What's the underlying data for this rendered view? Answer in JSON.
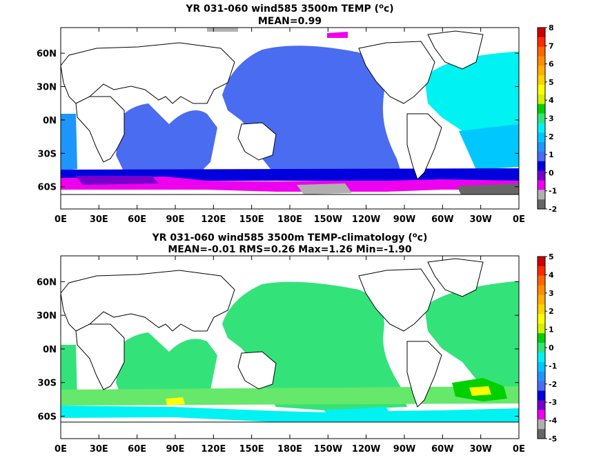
{
  "chart_data": [
    {
      "type": "heatmap",
      "title": "YR 031-060 wind585 3500m TEMP (",
      "title_sup": "o",
      "title_end": "c)",
      "subtitle": "MEAN=0.99",
      "x_ticks": [
        "0E",
        "30E",
        "60E",
        "90E",
        "120E",
        "150E",
        "180E",
        "150W",
        "120W",
        "90W",
        "60W",
        "30W",
        "0E"
      ],
      "y_ticks": [
        "60N",
        "30N",
        "0N",
        "30S",
        "60S"
      ],
      "xlim": [
        0,
        360
      ],
      "ylim": [
        -80,
        83
      ],
      "colorbar_ticks": [
        "8",
        "7",
        "6",
        "5",
        "4",
        "3",
        "2",
        "1",
        "0",
        "-1",
        "-2"
      ],
      "colorbar_range": [
        -2,
        8
      ],
      "colorbar_colors": [
        "#cc0000",
        "#ff2a00",
        "#ff6600",
        "#ff8c00",
        "#ffb000",
        "#ffd400",
        "#ffff00",
        "#d4f000",
        "#00d000",
        "#33e37a",
        "#00f2f2",
        "#00c8ff",
        "#1e96ff",
        "#4a6cf0",
        "#0000dd",
        "#7700cc",
        "#ee00ee",
        "#b0b0b0",
        "#666666"
      ],
      "fields": [
        {
          "value_range": [
            0,
            1
          ],
          "color": "#4a6cf0",
          "region": "Pacific basin"
        },
        {
          "value_range": [
            1,
            2
          ],
          "color": "#00c8ff",
          "region": "North Atlantic"
        },
        {
          "value_range": [
            -1,
            0
          ],
          "color": "#ee00ee",
          "region": "Southern Ocean"
        }
      ]
    },
    {
      "type": "heatmap",
      "title": "YR 031-060 wind585 3500m TEMP-climatology (",
      "title_sup": "o",
      "title_end": "c)",
      "subtitle": "MEAN=-0.01   RMS=0.26   Max=1.26   Min=-1.90",
      "x_ticks": [
        "0E",
        "30E",
        "60E",
        "90E",
        "120E",
        "150E",
        "180E",
        "150W",
        "120W",
        "90W",
        "60W",
        "30W",
        "0E"
      ],
      "y_ticks": [
        "60N",
        "30N",
        "0N",
        "30S",
        "60S"
      ],
      "xlim": [
        0,
        360
      ],
      "ylim": [
        -80,
        83
      ],
      "colorbar_ticks": [
        "5",
        "4",
        "3",
        "2",
        "1",
        "0",
        "-1",
        "-2",
        "-3",
        "-4",
        "-5"
      ],
      "colorbar_range": [
        -5,
        5
      ],
      "colorbar_colors": [
        "#cc0000",
        "#ff2a00",
        "#ff6600",
        "#ff8c00",
        "#ffb000",
        "#ffd400",
        "#ffff00",
        "#d4f000",
        "#00d000",
        "#33e37a",
        "#00f2f2",
        "#00c8ff",
        "#1e96ff",
        "#4a6cf0",
        "#0000dd",
        "#7700cc",
        "#ee00ee",
        "#b0b0b0",
        "#666666"
      ],
      "fields": [
        {
          "value_range": [
            0,
            0.5
          ],
          "color": "#33e37a",
          "region": "global deep ocean"
        },
        {
          "value_range": [
            0.5,
            1
          ],
          "color": "#66e86a",
          "region": "Southern Ocean / Indian"
        },
        {
          "value_range": [
            -1,
            -0.5
          ],
          "color": "#00f2f2",
          "region": "Southern Ocean Pacific sector"
        }
      ]
    }
  ]
}
